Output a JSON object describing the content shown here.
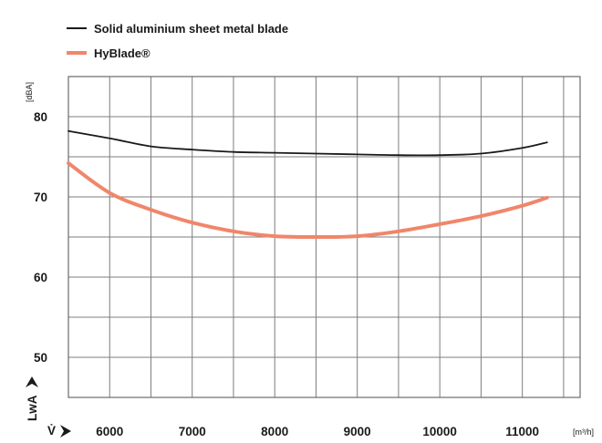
{
  "chart_data": {
    "type": "line",
    "title": "",
    "xlabel": "V̇",
    "ylabel": "LwA",
    "x_unit": "[m³/h]",
    "y_unit": "[dBA]",
    "xlim": [
      5500,
      11700
    ],
    "ylim": [
      45,
      85
    ],
    "x_ticks": [
      6000,
      7000,
      8000,
      9000,
      10000,
      11000
    ],
    "y_ticks": [
      50,
      60,
      70,
      80
    ],
    "grid": true,
    "legend_position": "top-left",
    "series": [
      {
        "name": "Solid aluminium sheet metal blade",
        "color": "#1a1a1a",
        "x": [
          5500,
          6000,
          6500,
          7000,
          7500,
          8000,
          8500,
          9000,
          9500,
          10000,
          10500,
          11000,
          11300
        ],
        "y": [
          78.2,
          77.3,
          76.3,
          75.9,
          75.6,
          75.5,
          75.4,
          75.3,
          75.2,
          75.2,
          75.4,
          76.1,
          76.8
        ]
      },
      {
        "name": "HyBlade®",
        "color": "#f0866a",
        "x": [
          5500,
          6000,
          6500,
          7000,
          7500,
          8000,
          8500,
          9000,
          9500,
          10000,
          10500,
          11000,
          11300
        ],
        "y": [
          74.2,
          70.5,
          68.4,
          66.8,
          65.7,
          65.1,
          65.0,
          65.1,
          65.7,
          66.6,
          67.6,
          68.9,
          69.9
        ]
      }
    ]
  }
}
